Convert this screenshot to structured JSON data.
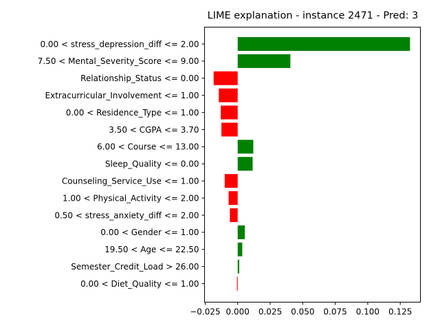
{
  "chart_data": {
    "type": "bar",
    "orientation": "horizontal",
    "title": "LIME explanation - instance 2471 - Pred: 3",
    "xlabel": "",
    "ylabel": "",
    "xlim": [
      -0.0255,
      0.1405
    ],
    "xticks": [
      -0.025,
      0.0,
      0.025,
      0.05,
      0.075,
      0.1,
      0.125
    ],
    "xtick_labels": [
      "−0.025",
      "0.000",
      "0.025",
      "0.050",
      "0.075",
      "0.100",
      "0.125"
    ],
    "grid": false,
    "positive_color": "#008000",
    "negative_color": "#ff0000",
    "categories": [
      "0.00 < stress_depression_diff <= 2.00",
      "7.50 < Mental_Severity_Score <= 9.00",
      "Relationship_Status <= 0.00",
      "Extracurricular_Involvement <= 1.00",
      "0.00 < Residence_Type <= 1.00",
      "3.50 < CGPA <= 3.70",
      "6.00 < Course <= 13.00",
      "Sleep_Quality <= 0.00",
      "Counseling_Service_Use <= 1.00",
      "1.00 < Physical_Activity <= 2.00",
      "0.50 < stress_anxiety_diff <= 2.00",
      "0.00 < Gender <= 1.00",
      "19.50 < Age <= 22.50",
      "Semester_Credit_Load > 26.00",
      "0.00 < Diet_Quality <= 1.00"
    ],
    "values": [
      0.1325,
      0.0405,
      -0.0185,
      -0.0145,
      -0.013,
      -0.0125,
      0.012,
      0.0115,
      -0.01,
      -0.007,
      -0.006,
      0.0055,
      0.0035,
      0.0012,
      -0.0006
    ]
  }
}
